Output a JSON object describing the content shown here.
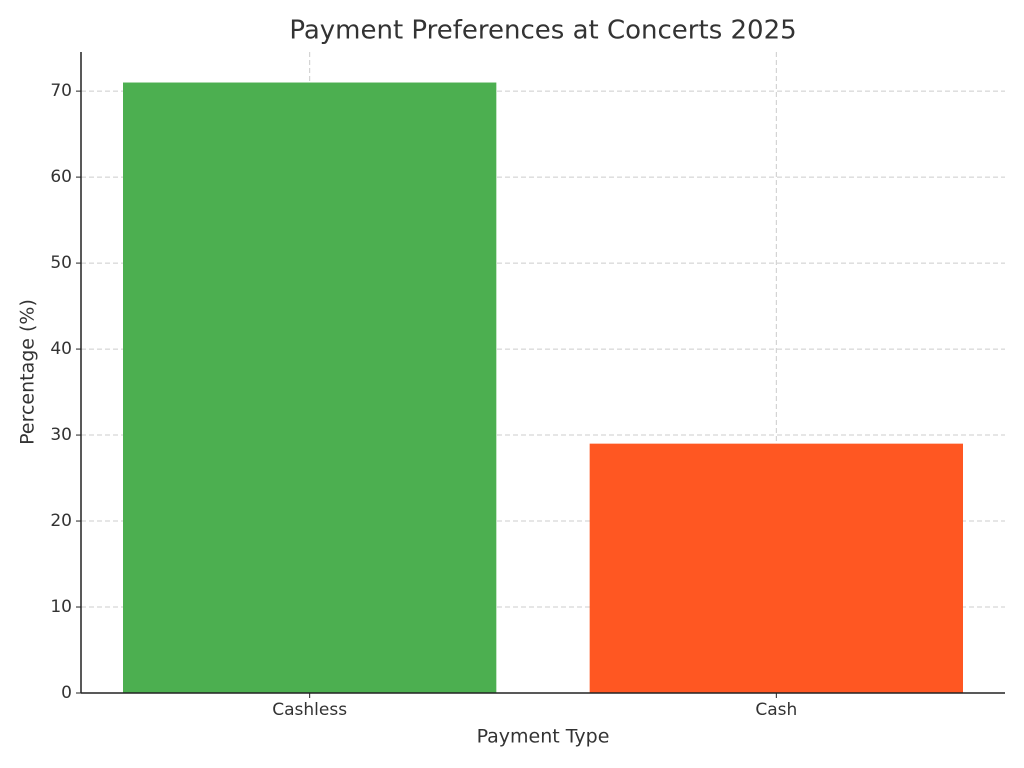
{
  "chart_data": {
    "type": "bar",
    "title": "Payment Preferences at Concerts 2025",
    "x_label": "Payment Type",
    "y_label": "Percentage (%)",
    "categories": [
      "Cashless",
      "Cash"
    ],
    "values": [
      71,
      29
    ],
    "colors": [
      "#4caf50",
      "#ff5722"
    ],
    "ylim": [
      0,
      74.55
    ],
    "yticks": [
      0,
      10,
      20,
      30,
      40,
      50,
      60,
      70
    ],
    "grid": true
  }
}
